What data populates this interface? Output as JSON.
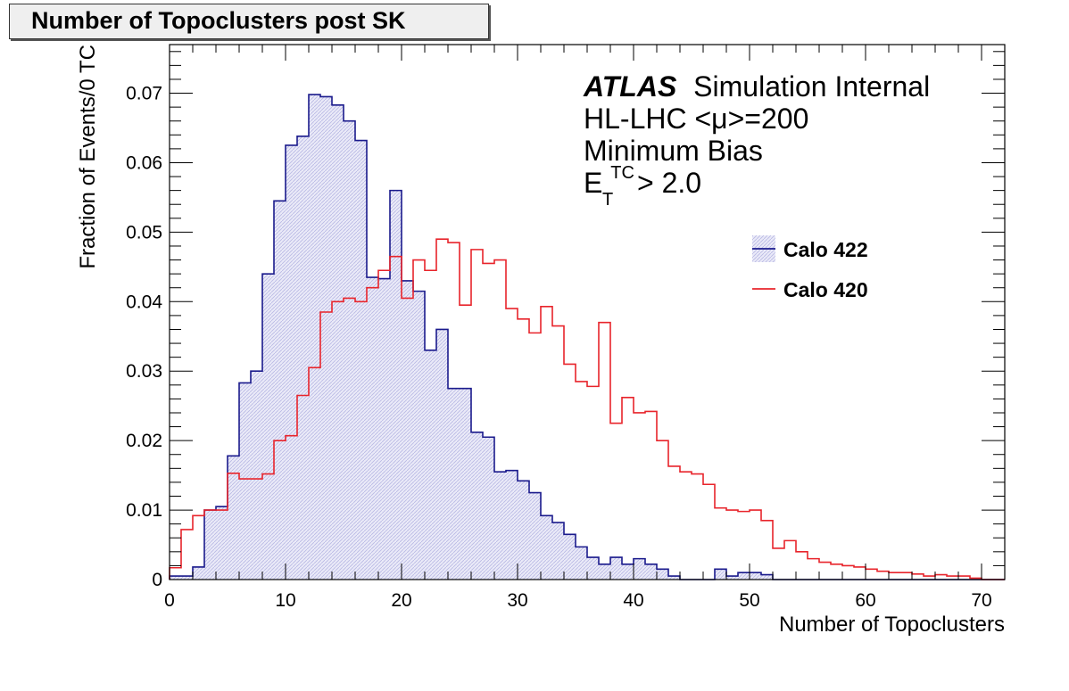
{
  "chart_data": {
    "type": "histogram",
    "title": "Number of Topoclusters post SK",
    "xlabel": "Number of Topoclusters",
    "ylabel": "Fraction of Events/0 TC",
    "xlim": [
      0,
      72
    ],
    "ylim": [
      0,
      0.077
    ],
    "bin_width": 1,
    "x_ticks": [
      "0",
      "10",
      "20",
      "30",
      "40",
      "50",
      "60",
      "70"
    ],
    "y_ticks": [
      "0",
      "0.01",
      "0.02",
      "0.03",
      "0.04",
      "0.05",
      "0.06",
      "0.07"
    ],
    "info": {
      "atlas": "ATLAS",
      "atlas_suffix": "Simulation Internal",
      "line2": "HL-LHC <μ>=200",
      "line3": "Minimum Bias",
      "line4_base": "E",
      "line4_sub": "T",
      "line4_sup": "TC",
      "line4_rest": "> 2.0"
    },
    "legend_position": "right",
    "series": [
      {
        "name": "Calo 422",
        "color": "#1a1a8c",
        "fill": "#e6e6f7",
        "values": [
          0.0005,
          0.0005,
          0.0018,
          0.01,
          0.0105,
          0.0178,
          0.0283,
          0.03,
          0.044,
          0.0545,
          0.0625,
          0.0638,
          0.0698,
          0.0695,
          0.0683,
          0.066,
          0.0632,
          0.0435,
          0.0433,
          0.056,
          0.043,
          0.0415,
          0.033,
          0.036,
          0.0275,
          0.0275,
          0.0212,
          0.0205,
          0.0155,
          0.0157,
          0.0142,
          0.0125,
          0.0092,
          0.0082,
          0.0065,
          0.0047,
          0.0032,
          0.0022,
          0.0032,
          0.0022,
          0.003,
          0.0022,
          0.0015,
          0.0005,
          0.0,
          0.0,
          0.0,
          0.0015,
          0.0005,
          0.001,
          0.001,
          0.0007,
          0.0,
          0.0,
          0.0,
          0.0,
          0.0,
          0.0,
          0.0,
          0.0,
          0.0,
          0.0,
          0.0,
          0.0,
          0.0,
          0.0,
          0.0,
          0.0,
          0.0,
          0.0,
          0.0,
          0.0
        ]
      },
      {
        "name": "Calo 420",
        "color": "#e8242b",
        "values": [
          0.0017,
          0.0072,
          0.0092,
          0.01,
          0.01,
          0.0153,
          0.0145,
          0.0145,
          0.0152,
          0.02,
          0.0207,
          0.0265,
          0.0305,
          0.0385,
          0.04,
          0.0405,
          0.04,
          0.042,
          0.0445,
          0.0465,
          0.0405,
          0.046,
          0.0445,
          0.049,
          0.0485,
          0.0395,
          0.0475,
          0.0455,
          0.046,
          0.039,
          0.0375,
          0.0355,
          0.0393,
          0.0365,
          0.031,
          0.0285,
          0.0278,
          0.037,
          0.0225,
          0.0262,
          0.024,
          0.0242,
          0.02,
          0.0163,
          0.0155,
          0.0152,
          0.0137,
          0.0103,
          0.01,
          0.0098,
          0.01,
          0.0085,
          0.0045,
          0.0056,
          0.004,
          0.003,
          0.0025,
          0.0022,
          0.002,
          0.0018,
          0.0015,
          0.0012,
          0.001,
          0.001,
          0.0008,
          0.0005,
          0.0007,
          0.0005,
          0.0005,
          0.0002,
          0.0,
          0.0
        ]
      }
    ]
  }
}
